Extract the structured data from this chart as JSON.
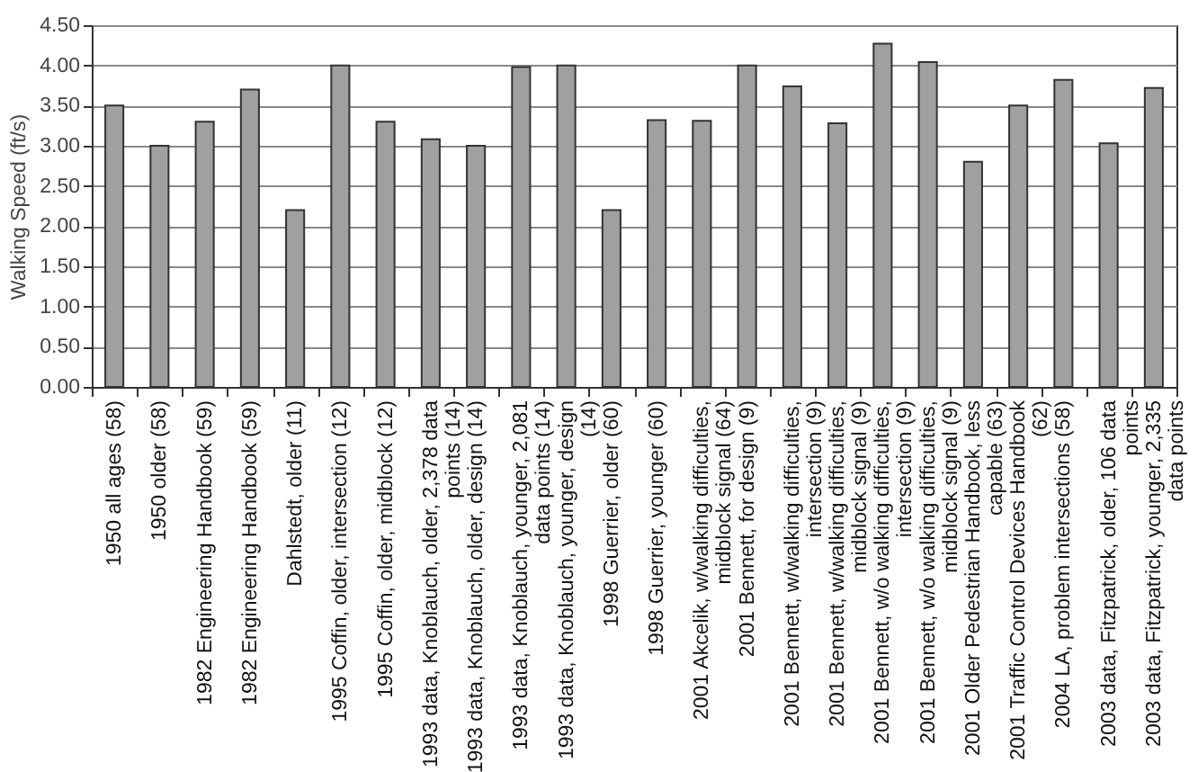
{
  "chart_data": {
    "type": "bar",
    "ylabel": "Walking Speed (ft/s)",
    "categories": [
      "1950 all ages (58)",
      "1950 older (58)",
      "1982 Engineering Handbook (59)",
      "1982 Engineering Handbook (59)",
      "Dahlstedt, older (11)",
      "1995 Coffin, older, intersection (12)",
      "1995 Coffin, older, midblock (12)",
      "1993 data, Knoblauch, older, 2,378 data points (14)",
      "1993 data, Knoblauch, older, design (14)",
      "1993 data, Knoblauch, younger, 2,081 data points (14)",
      "1993 data,  Knoblauch, younger, design (14)",
      "1998 Guerrier, older (60)",
      "1998 Guerrier, younger (60)",
      "2001 Akcelik, w/walking difficulties, midblock signal (64)",
      "2001 Bennett, for design (9)",
      "2001 Bennett, w/walking difficulties, intersection (9)",
      "2001 Bennett, w/walking difficulties, midblock signal (9)",
      "2001 Bennett, w/o walking difficulties, intersection (9)",
      "2001 Bennett, w/o walking difficulties, midblock signal (9)",
      "2001 Older Pedestrian Handbook, less capable (63)",
      "2001 Traffic Control Devices Handbook (62)",
      "2004 LA, problem intersections (58)",
      "2003 data, Fitzpatrick, older, 106 data points",
      "2003 data, Fitzpatrick, younger, 2,335 data points"
    ],
    "values": [
      3.5,
      3.0,
      3.3,
      3.7,
      2.2,
      4.0,
      3.3,
      3.08,
      3.0,
      3.98,
      4.0,
      2.2,
      3.32,
      3.31,
      4.0,
      3.74,
      3.28,
      4.27,
      4.04,
      2.8,
      3.5,
      3.82,
      3.03,
      3.72
    ],
    "color": "#a0a0a0",
    "ylim": [
      0,
      4.5
    ],
    "yticks": [
      {
        "value": 0,
        "label": "0.00"
      },
      {
        "value": 0.5,
        "label": "0.50"
      },
      {
        "value": 1,
        "label": "1.00"
      },
      {
        "value": 1.5,
        "label": "1.50"
      },
      {
        "value": 2,
        "label": "2.00"
      },
      {
        "value": 2.5,
        "label": "2.50"
      },
      {
        "value": 3,
        "label": "3.00"
      },
      {
        "value": 3.5,
        "label": "3.50"
      },
      {
        "value": 4,
        "label": "4.00"
      },
      {
        "value": 4.5,
        "label": "4.50"
      }
    ],
    "grid": "y"
  }
}
